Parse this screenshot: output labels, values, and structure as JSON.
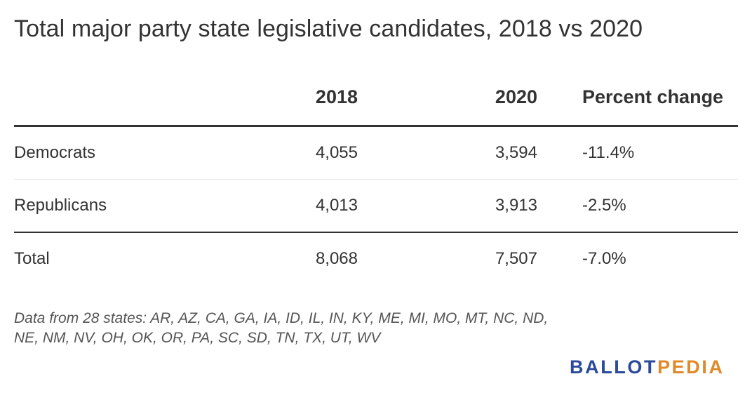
{
  "chart_data": {
    "type": "table",
    "title": "Total major party state legislative candidates, 2018 vs 2020",
    "columns": [
      "",
      "2018",
      "2020",
      "Percent change"
    ],
    "rows": [
      {
        "label": "Democrats",
        "y2018": "4,055",
        "y2020": "3,594",
        "pct": "-11.4%"
      },
      {
        "label": "Republicans",
        "y2018": "4,013",
        "y2020": "3,913",
        "pct": "-2.5%"
      },
      {
        "label": "Total",
        "y2018": "8,068",
        "y2020": "7,507",
        "pct": "-7.0%"
      }
    ],
    "note_line1": "Data from 28 states: AR, AZ, CA, GA, IA, ID, IL, IN, KY, ME, MI, MO, MT, NC, ND,",
    "note_line2": "NE, NM, NV, OH, OK, OR, PA, SC, SD, TN, TX, UT, WV"
  },
  "logo": {
    "part1": "BALLOT",
    "part2": "PEDIA",
    "color1": "#2b4a9b",
    "color2": "#e0892a"
  },
  "colors": {
    "text": "#333333",
    "rule_strong": "#333333",
    "rule_light": "#e6e6e6"
  }
}
